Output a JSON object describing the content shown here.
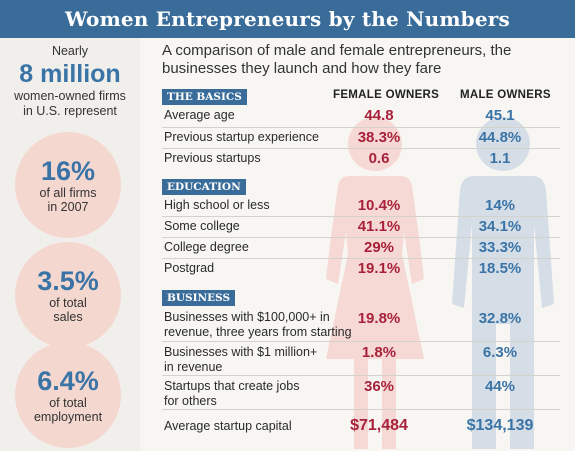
{
  "header": {
    "title": "Women Entrepreneurs by the Numbers"
  },
  "sidebar": {
    "intro": {
      "line1": "Nearly",
      "big": "8 million",
      "line2": "women-owned firms",
      "line3": "in U.S. represent"
    },
    "stats": [
      {
        "value": "16%",
        "line1": "of all firms",
        "line2": "in 2007"
      },
      {
        "value": "3.5%",
        "line1": "of total",
        "line2": "sales"
      },
      {
        "value": "6.4%",
        "line1": "of total",
        "line2": "employment"
      }
    ]
  },
  "main": {
    "subtitle_line1": "A comparison of male and female entrepreneurs, the",
    "subtitle_line2": "businesses they launch and how they fare",
    "col_female": "FEMALE OWNERS",
    "col_male": "MALE OWNERS",
    "sections": [
      {
        "title": "THE BASICS",
        "rows": [
          {
            "label1": "Average age",
            "label2": "",
            "female": "44.8",
            "male": "45.1"
          },
          {
            "label1": "Previous startup experience",
            "label2": "",
            "female": "38.3%",
            "male": "44.8%"
          },
          {
            "label1": "Previous startups",
            "label2": "",
            "female": "0.6",
            "male": "1.1"
          }
        ]
      },
      {
        "title": "EDUCATION",
        "rows": [
          {
            "label1": "High school or less",
            "label2": "",
            "female": "10.4%",
            "male": "14%"
          },
          {
            "label1": "Some college",
            "label2": "",
            "female": "41.1%",
            "male": "34.1%"
          },
          {
            "label1": "College degree",
            "label2": "",
            "female": "29%",
            "male": "33.3%"
          },
          {
            "label1": "Postgrad",
            "label2": "",
            "female": "19.1%",
            "male": "18.5%"
          }
        ]
      },
      {
        "title": "BUSINESS",
        "rows": [
          {
            "label1": "Businesses with $100,000+ in",
            "label2": "revenue, three years from starting",
            "female": "19.8%",
            "male": "32.8%"
          },
          {
            "label1": "Businesses with $1 million+",
            "label2": "in revenue",
            "female": "1.8%",
            "male": "6.3%"
          },
          {
            "label1": "Startups that create jobs",
            "label2": "for others",
            "female": "36%",
            "male": "44%"
          },
          {
            "label1": "Average startup capital",
            "label2": "",
            "female": "$71,484",
            "male": "$134,139"
          }
        ]
      }
    ]
  },
  "colors": {
    "header_blue": "#3a6c99",
    "female_red": "#a8213a",
    "male_blue": "#3a74a6",
    "circle_pink": "#f4d7cf",
    "female_silhouette": "#f6d9d4",
    "male_silhouette": "#d5dde7"
  },
  "icons": [
    "female-silhouette-icon",
    "male-silhouette-icon"
  ]
}
